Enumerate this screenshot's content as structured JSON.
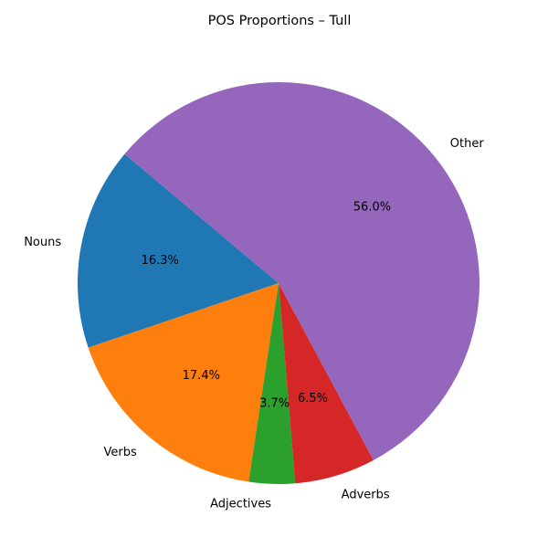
{
  "chart_data": {
    "type": "pie",
    "title": "POS Proportions – Tull",
    "slices": [
      {
        "label": "Nouns",
        "value": 16.3,
        "pct_label": "16.3%",
        "color": "#1f77b4"
      },
      {
        "label": "Verbs",
        "value": 17.4,
        "pct_label": "17.4%",
        "color": "#ff7f0e"
      },
      {
        "label": "Adjectives",
        "value": 3.7,
        "pct_label": "3.7%",
        "color": "#2ca02c"
      },
      {
        "label": "Adverbs",
        "value": 6.5,
        "pct_label": "6.5%",
        "color": "#d62728"
      },
      {
        "label": "Other",
        "value": 56.0,
        "pct_label": "56.0%",
        "color": "#9467bd"
      }
    ],
    "start_angle_deg": 140,
    "direction": "counterclockwise",
    "legend": "none"
  }
}
